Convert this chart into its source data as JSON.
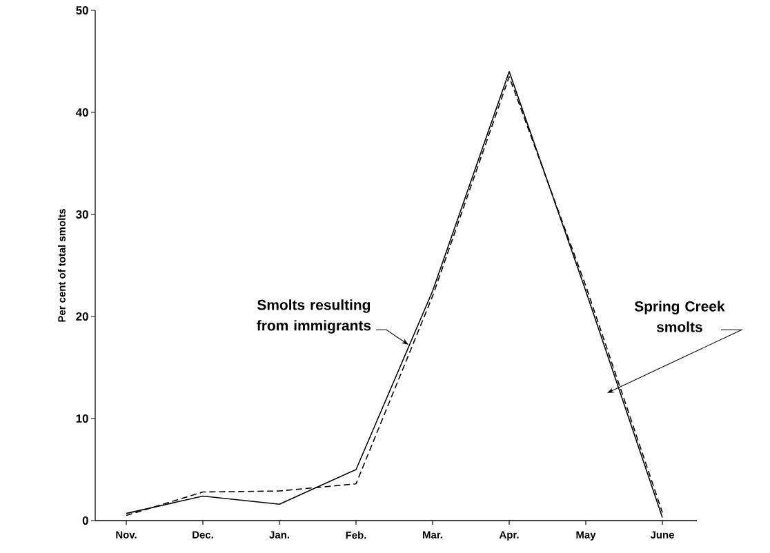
{
  "chart_data": {
    "type": "line",
    "ylabel": "Per cent of total smolts",
    "categories": [
      "Nov.",
      "Dec.",
      "Jan.",
      "Feb.",
      "Mar.",
      "Apr.",
      "May",
      "June"
    ],
    "series": [
      {
        "name": "Smolts resulting from immigrants",
        "color": "#000000",
        "line_style": "solid",
        "values": [
          0.7,
          2.4,
          1.6,
          5.0,
          22.5,
          44.0,
          22.5,
          0.3
        ]
      },
      {
        "name": "Spring Creek smolts",
        "color": "#000000",
        "line_style": "dashed",
        "values": [
          0.5,
          2.8,
          2.9,
          3.6,
          22.0,
          43.5,
          23.0,
          0.8
        ]
      }
    ],
    "ylim": [
      0,
      50
    ],
    "yticks": [
      0,
      10,
      20,
      30,
      40,
      50
    ],
    "grid": false,
    "legend": false,
    "marker": "none"
  }
}
